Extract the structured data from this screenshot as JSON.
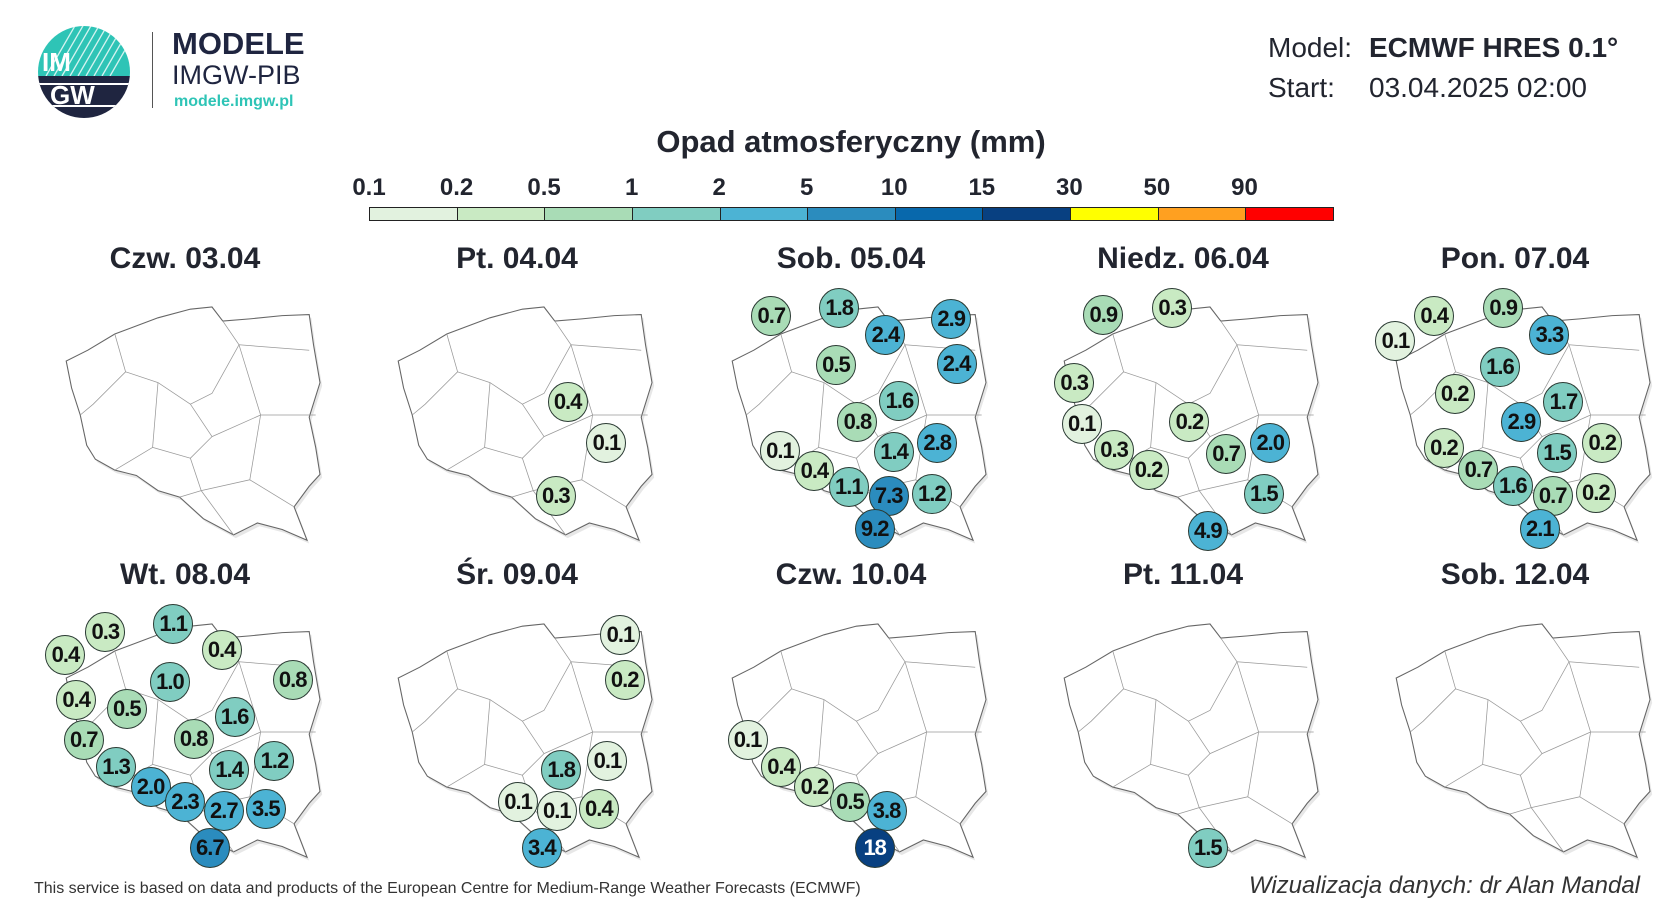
{
  "brand": {
    "logo_text_top": "IM",
    "logo_text_bottom": "GW",
    "name": "MODELE",
    "org": "IMGW-PIB",
    "url": "modele.imgw.pl",
    "accent": "#2ec4b6",
    "dark": "#1f2540"
  },
  "meta": {
    "model_label": "Model:",
    "model_value": "ECMWF HRES 0.1°",
    "start_label": "Start:",
    "start_value": "03.04.2025 02:00"
  },
  "title": "Opad atmosferyczny (mm)",
  "legend": {
    "thresholds": [
      "0.1",
      "0.2",
      "0.5",
      "1",
      "2",
      "5",
      "10",
      "15",
      "30",
      "50",
      "90"
    ],
    "colors": [
      "#e2f2df",
      "#c9eac3",
      "#a9dcb6",
      "#80cdc1",
      "#4cb3d4",
      "#2b8cbe",
      "#0868ac",
      "#084081",
      "#ffff00",
      "#ffa020",
      "#ff0000"
    ]
  },
  "panels": [
    {
      "title": "Czw. 03.04",
      "values": []
    },
    {
      "title": "Pt. 04.04",
      "values": [
        "0.4",
        "0.1",
        "0.3"
      ]
    },
    {
      "title": "Sob. 05.04",
      "values": [
        "0.7",
        "1.8",
        "2.4",
        "2.9",
        "2.4",
        "0.5",
        "1.6",
        "0.8",
        "1.4",
        "2.8",
        "0.1",
        "0.4",
        "1.1",
        "7.3",
        "1.2",
        "9.2"
      ]
    },
    {
      "title": "Niedz. 06.04",
      "values": [
        "0.9",
        "0.3",
        "0.3",
        "0.1",
        "0.3",
        "0.2",
        "0.2",
        "0.7",
        "2.0",
        "1.5",
        "4.9"
      ]
    },
    {
      "title": "Pon. 07.04",
      "values": [
        "0.1",
        "0.4",
        "0.9",
        "3.3",
        "1.6",
        "0.2",
        "1.7",
        "2.9",
        "1.5",
        "0.2",
        "0.2",
        "0.7",
        "1.6",
        "0.7",
        "0.2",
        "2.1"
      ]
    },
    {
      "title": "Wt. 08.04",
      "values": [
        "0.3",
        "1.1",
        "0.4",
        "0.4",
        "0.8",
        "1.0",
        "0.4",
        "0.5",
        "1.6",
        "0.7",
        "0.8",
        "1.3",
        "1.4",
        "1.2",
        "2.0",
        "2.3",
        "2.7",
        "3.5",
        "6.7"
      ]
    },
    {
      "title": "Śr. 09.04",
      "values": [
        "0.1",
        "0.2",
        "1.8",
        "0.1",
        "0.1",
        "0.1",
        "0.4",
        "3.4"
      ]
    },
    {
      "title": "Czw. 10.04",
      "values": [
        "0.1",
        "0.4",
        "0.2",
        "0.5",
        "3.8",
        "18"
      ]
    },
    {
      "title": "Pt. 11.04",
      "values": [
        "1.5"
      ]
    },
    {
      "title": "Sob. 12.04",
      "values": []
    }
  ],
  "footer": {
    "source": "This service is based on data and products of the European Centre for Medium-Range Weather Forecasts (ECMWF)",
    "credit": "Wizualizacja danych: dr Alan Mandal"
  }
}
